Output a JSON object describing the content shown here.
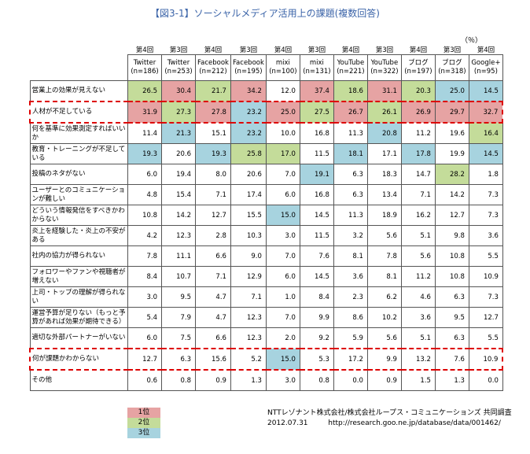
{
  "title": "【図3-1】ソーシャルメディア活用上の課題(複数回答)",
  "unit": "（％）",
  "table": {
    "columns": [
      {
        "round": "第4回",
        "name": "Twitter",
        "n": "(n=186)"
      },
      {
        "round": "第3回",
        "name": "Twitter",
        "n": "(n=253)"
      },
      {
        "round": "第4回",
        "name": "Facebook",
        "n": "(n=212)"
      },
      {
        "round": "第3回",
        "name": "Facebook",
        "n": "(n=195)"
      },
      {
        "round": "第4回",
        "name": "mixi",
        "n": "(n=100)"
      },
      {
        "round": "第3回",
        "name": "mixi",
        "n": "(n=131)"
      },
      {
        "round": "第4回",
        "name": "YouTube",
        "n": "(n=221)"
      },
      {
        "round": "第3回",
        "name": "YouTube",
        "n": "(n=322)"
      },
      {
        "round": "第4回",
        "name": "ブログ",
        "n": "(n=197)"
      },
      {
        "round": "第3回",
        "name": "ブログ",
        "n": "(n=318)"
      },
      {
        "round": "第4回",
        "name": "Google+",
        "n": "(n=95)"
      }
    ],
    "rows": [
      {
        "label": "営業上の効果が見えない",
        "values": [
          "26.5",
          "30.4",
          "21.7",
          "34.2",
          "12.0",
          "37.4",
          "18.6",
          "31.1",
          "20.3",
          "25.0",
          "14.5"
        ],
        "ranks": [
          2,
          1,
          2,
          1,
          null,
          1,
          2,
          1,
          2,
          3,
          3
        ]
      },
      {
        "label": "人材が不足している",
        "boxed": true,
        "values": [
          "31.9",
          "27.3",
          "27.8",
          "23.2",
          "25.0",
          "27.5",
          "26.7",
          "26.1",
          "26.9",
          "29.7",
          "32.7"
        ],
        "ranks": [
          1,
          2,
          1,
          3,
          1,
          2,
          1,
          2,
          1,
          1,
          1
        ]
      },
      {
        "label": "何を基準に効果測定すればいいか",
        "values": [
          "11.4",
          "21.3",
          "15.1",
          "23.2",
          "10.0",
          "16.8",
          "11.3",
          "20.8",
          "11.2",
          "19.6",
          "16.4"
        ],
        "ranks": [
          null,
          3,
          null,
          3,
          null,
          null,
          null,
          3,
          null,
          null,
          2
        ]
      },
      {
        "label": "教育・トレーニングが不足している",
        "values": [
          "19.3",
          "20.6",
          "19.3",
          "25.8",
          "17.0",
          "11.5",
          "18.1",
          "17.1",
          "17.8",
          "19.9",
          "14.5"
        ],
        "ranks": [
          3,
          null,
          3,
          2,
          2,
          null,
          3,
          null,
          3,
          null,
          3
        ]
      },
      {
        "label": "投稿のネタがない",
        "values": [
          "6.0",
          "19.4",
          "8.0",
          "20.6",
          "7.0",
          "19.1",
          "6.3",
          "18.3",
          "14.7",
          "28.2",
          "1.8"
        ],
        "ranks": [
          null,
          null,
          null,
          null,
          null,
          3,
          null,
          null,
          null,
          2,
          null
        ]
      },
      {
        "label": "ユーザーとのコミュニケーションが難しい",
        "values": [
          "4.8",
          "15.4",
          "7.1",
          "17.4",
          "6.0",
          "16.8",
          "6.3",
          "13.4",
          "7.1",
          "14.2",
          "7.3"
        ],
        "ranks": [
          null,
          null,
          null,
          null,
          null,
          null,
          null,
          null,
          null,
          null,
          null
        ]
      },
      {
        "label": "どういう情報発信をすべきかわからない",
        "values": [
          "10.8",
          "14.2",
          "12.7",
          "15.5",
          "15.0",
          "14.5",
          "11.3",
          "18.9",
          "16.2",
          "12.7",
          "7.3"
        ],
        "ranks": [
          null,
          null,
          null,
          null,
          3,
          null,
          null,
          null,
          null,
          null,
          null
        ]
      },
      {
        "label": "炎上を経験した・炎上の不安がある",
        "values": [
          "4.2",
          "12.3",
          "2.8",
          "10.3",
          "3.0",
          "11.5",
          "3.2",
          "5.6",
          "5.1",
          "9.8",
          "3.6"
        ],
        "ranks": [
          null,
          null,
          null,
          null,
          null,
          null,
          null,
          null,
          null,
          null,
          null
        ]
      },
      {
        "label": "社内の協力が得られない",
        "values": [
          "7.8",
          "11.1",
          "6.6",
          "9.0",
          "7.0",
          "7.6",
          "8.1",
          "7.8",
          "5.6",
          "10.8",
          "5.5"
        ],
        "ranks": [
          null,
          null,
          null,
          null,
          null,
          null,
          null,
          null,
          null,
          null,
          null
        ]
      },
      {
        "label": "フォロワーやファンや視聴者が増えない",
        "values": [
          "8.4",
          "10.7",
          "7.1",
          "12.9",
          "6.0",
          "14.5",
          "3.6",
          "8.1",
          "11.2",
          "10.8",
          "10.9"
        ],
        "ranks": [
          null,
          null,
          null,
          null,
          null,
          null,
          null,
          null,
          null,
          null,
          null
        ]
      },
      {
        "label": "上司・トップの理解が得られない",
        "values": [
          "3.0",
          "9.5",
          "4.7",
          "7.1",
          "1.0",
          "8.4",
          "2.3",
          "6.2",
          "4.6",
          "6.3",
          "7.3"
        ],
        "ranks": [
          null,
          null,
          null,
          null,
          null,
          null,
          null,
          null,
          null,
          null,
          null
        ]
      },
      {
        "label": "運営予算が足りない（もっと予算があれば効果が期待できる）",
        "values": [
          "5.4",
          "7.9",
          "4.7",
          "12.3",
          "7.0",
          "9.9",
          "8.6",
          "10.2",
          "3.6",
          "9.5",
          "12.7"
        ],
        "ranks": [
          null,
          null,
          null,
          null,
          null,
          null,
          null,
          null,
          null,
          null,
          null
        ]
      },
      {
        "label": "適切な外部パートナーがいない",
        "values": [
          "6.0",
          "7.5",
          "6.6",
          "12.3",
          "2.0",
          "9.2",
          "5.9",
          "5.6",
          "5.1",
          "6.3",
          "5.5"
        ],
        "ranks": [
          null,
          null,
          null,
          null,
          null,
          null,
          null,
          null,
          null,
          null,
          null
        ]
      },
      {
        "label": "何が課題かわからない",
        "boxed": true,
        "values": [
          "12.7",
          "6.3",
          "15.6",
          "5.2",
          "15.0",
          "5.3",
          "17.2",
          "9.9",
          "13.2",
          "7.6",
          "10.9"
        ],
        "ranks": [
          null,
          null,
          null,
          null,
          3,
          null,
          null,
          null,
          null,
          null,
          null
        ]
      },
      {
        "label": "その他",
        "values": [
          "0.6",
          "0.8",
          "0.9",
          "1.3",
          "3.0",
          "0.8",
          "0.0",
          "0.9",
          "1.5",
          "1.3",
          "0.0"
        ],
        "ranks": [
          null,
          null,
          null,
          null,
          null,
          null,
          null,
          null,
          null,
          null,
          null
        ]
      }
    ]
  },
  "legend": [
    {
      "label": "1位",
      "color": "#e6a3a3"
    },
    {
      "label": "2位",
      "color": "#c4dc9a"
    },
    {
      "label": "3位",
      "color": "#a7d3df"
    }
  ],
  "credit": {
    "organizations": "NTTレゾナント株式会社/株式会社ループス・コミュニケーションズ 共同調査",
    "date": "2012.07.31",
    "url": "http://research.goo.ne.jp/database/data/001462/"
  }
}
